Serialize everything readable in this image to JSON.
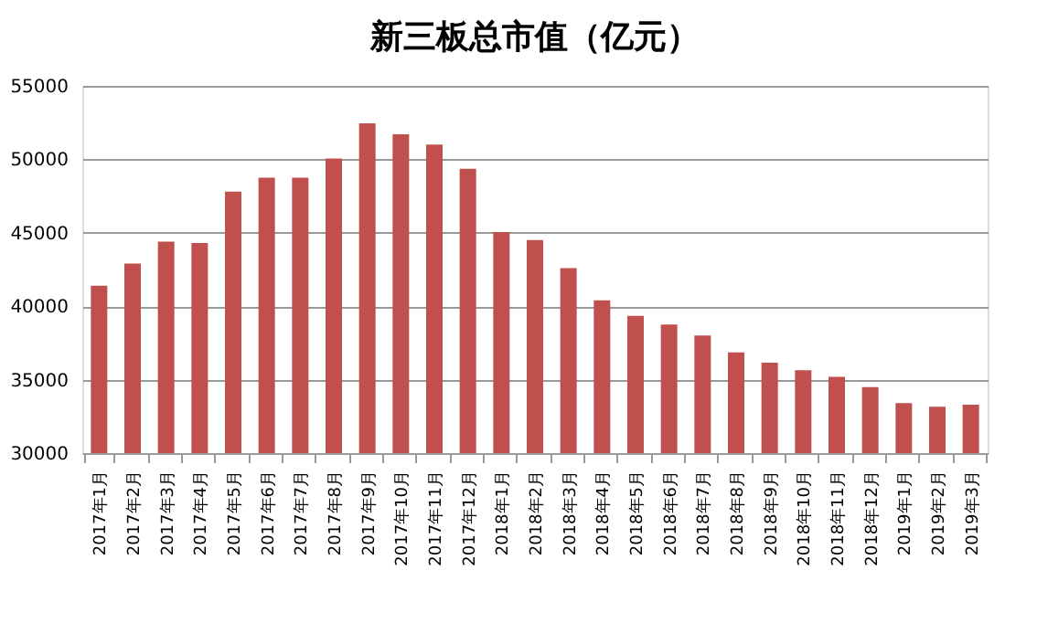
{
  "chart_data": {
    "type": "bar",
    "title": "新三板总市值（亿元）",
    "categories": [
      "2017年1月",
      "2017年2月",
      "2017年3月",
      "2017年4月",
      "2017年5月",
      "2017年6月",
      "2017年7月",
      "2017年8月",
      "2017年9月",
      "2017年10月",
      "2017年11月",
      "2017年12月",
      "2018年1月",
      "2018年2月",
      "2018年3月",
      "2018年4月",
      "2018年5月",
      "2018年6月",
      "2018年7月",
      "2018年8月",
      "2018年9月",
      "2018年10月",
      "2018年11月",
      "2018年12月",
      "2019年1月",
      "2019年2月",
      "2019年3月"
    ],
    "values": [
      41400,
      42900,
      44400,
      44300,
      47800,
      48750,
      48750,
      50050,
      52450,
      51700,
      51000,
      49350,
      45050,
      44500,
      42600,
      40400,
      39350,
      38750,
      38000,
      36850,
      36150,
      35650,
      35200,
      34500,
      33400,
      33150,
      33300
    ],
    "color": "#c0504d",
    "ylim": [
      30000,
      55000
    ],
    "yticks": [
      30000,
      35000,
      40000,
      45000,
      50000,
      55000
    ],
    "grid": "y"
  }
}
